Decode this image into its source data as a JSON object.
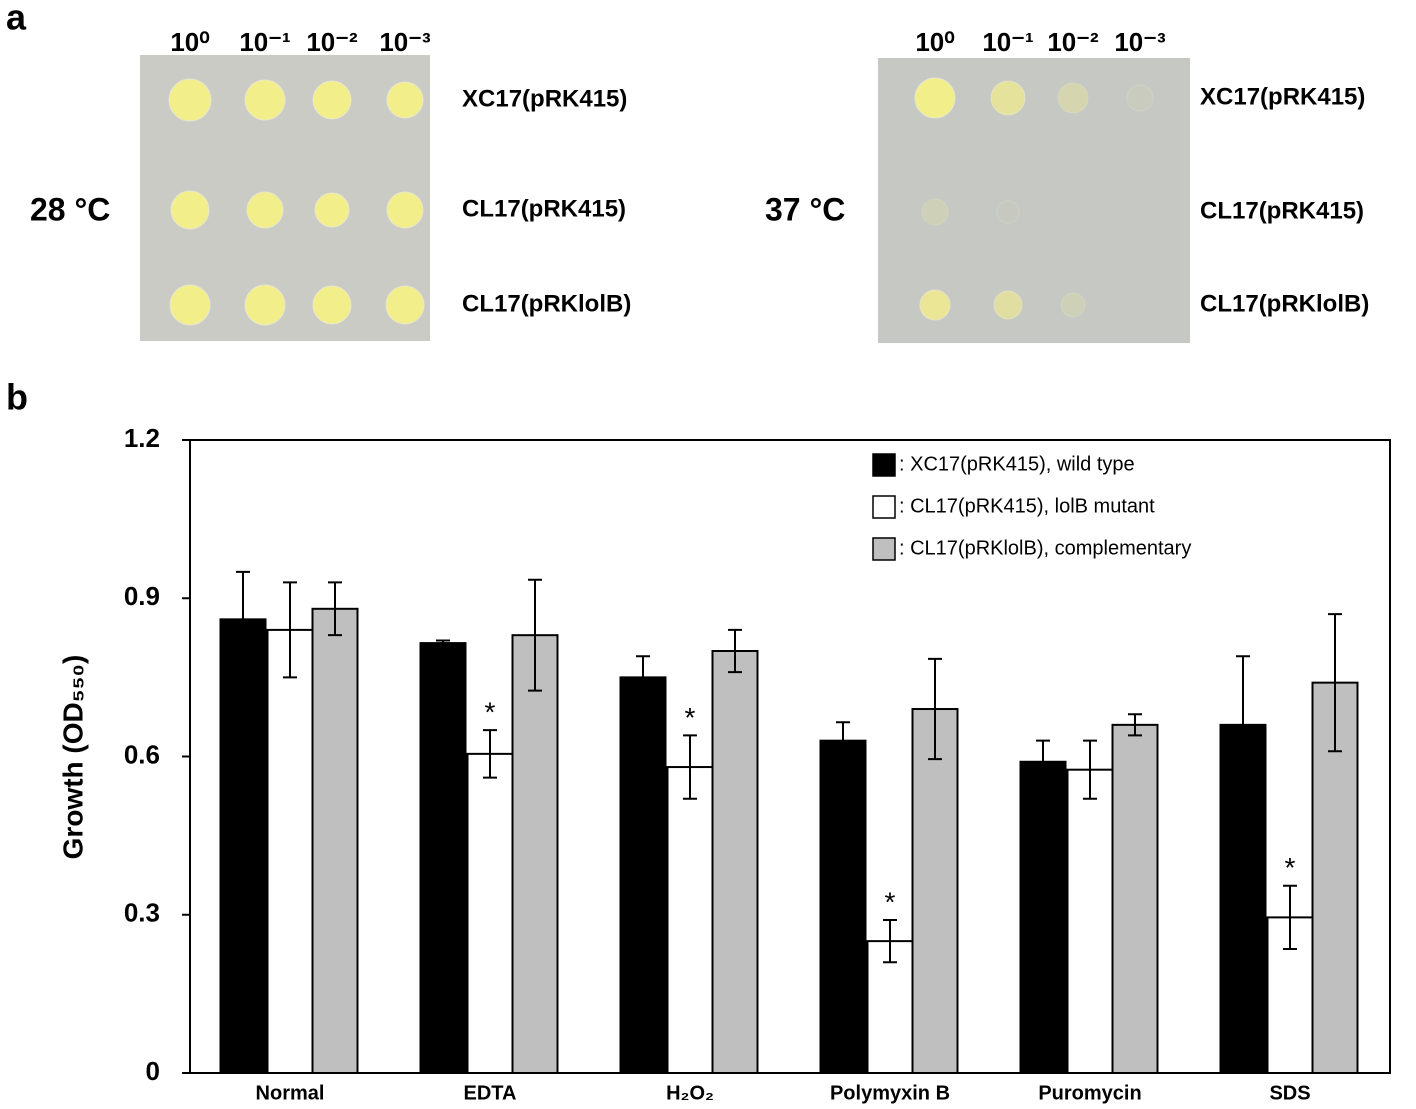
{
  "panel_a": {
    "label": "a",
    "plates": [
      {
        "temperature": "28 °C",
        "dilutions": [
          "10⁰",
          "10⁻¹",
          "10⁻²",
          "10⁻³"
        ],
        "strains": [
          "XC17(pRK415)",
          "CL17(pRK415)",
          "CL17(pRKlolB)"
        ]
      },
      {
        "temperature": "37 °C",
        "dilutions": [
          "10⁰",
          "10⁻¹",
          "10⁻²",
          "10⁻³"
        ],
        "strains": [
          "XC17(pRK415)",
          "CL17(pRK415)",
          "CL17(pRKlolB)"
        ]
      }
    ]
  },
  "chart_data": {
    "type": "bar",
    "panel_label": "b",
    "ylabel": "Growth (OD₅₅₀)",
    "categories": [
      "Normal",
      "EDTA",
      "H₂O₂",
      "Polymyxin  B",
      "Puromycin",
      "SDS"
    ],
    "series": [
      {
        "name": ": XC17(pRK415), wild type",
        "color": "#000000",
        "values": [
          0.86,
          0.815,
          0.75,
          0.63,
          0.59,
          0.66
        ],
        "errors": [
          0.09,
          0.005,
          0.04,
          0.035,
          0.04,
          0.13
        ]
      },
      {
        "name": ": CL17(pRK415), lolB mutant",
        "color": "#ffffff",
        "values": [
          0.84,
          0.605,
          0.58,
          0.25,
          0.575,
          0.295
        ],
        "errors": [
          0.09,
          0.045,
          0.06,
          0.04,
          0.055,
          0.06
        ],
        "annotations": [
          null,
          "*",
          "*",
          "*",
          null,
          "*"
        ]
      },
      {
        "name": ": CL17(pRKlolB), complementary",
        "color": "#bfbfbf",
        "values": [
          0.88,
          0.83,
          0.8,
          0.69,
          0.66,
          0.74
        ],
        "errors": [
          0.05,
          0.105,
          0.04,
          0.095,
          0.02,
          0.13
        ]
      }
    ],
    "ylim": [
      0,
      1.2
    ],
    "yticks": [
      0,
      0.3,
      0.6,
      0.9,
      1.2
    ],
    "grid": false,
    "legend": "upper right"
  }
}
